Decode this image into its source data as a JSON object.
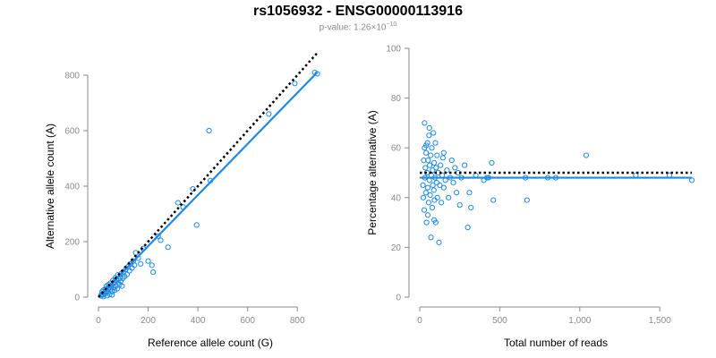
{
  "title": "rs1056932 - ENSG00000113916",
  "subtitle": {
    "prefix": "p-value: 1.26×10",
    "exponent": "−10"
  },
  "colors": {
    "points": "#1e88e5",
    "fit": "#1e88e5",
    "reference": "#000000",
    "ticks": "#8a8a8a"
  },
  "chart_data": [
    {
      "type": "scatter",
      "xlabel": "Reference allele count (G)",
      "ylabel": "Alternative allele count (A)",
      "xlim": [
        0,
        900
      ],
      "ylim": [
        0,
        800
      ],
      "xticks": [
        0,
        200,
        400,
        600,
        800
      ],
      "yticks": [
        0,
        200,
        400,
        600,
        800
      ],
      "xtick_labels": [
        "0",
        "200",
        "400",
        "600",
        "800"
      ],
      "ytick_labels": [
        "0",
        "200",
        "400",
        "600",
        "800"
      ],
      "grid": false,
      "reference_line": {
        "style": "dotted",
        "points": [
          [
            0,
            0
          ],
          [
            880,
            880
          ]
        ]
      },
      "fit_line": {
        "style": "solid",
        "points": [
          [
            0,
            0
          ],
          [
            880,
            810
          ]
        ]
      },
      "points": [
        [
          10,
          5
        ],
        [
          12,
          10
        ],
        [
          15,
          20
        ],
        [
          18,
          8
        ],
        [
          20,
          25
        ],
        [
          22,
          15
        ],
        [
          25,
          12
        ],
        [
          28,
          30
        ],
        [
          30,
          22
        ],
        [
          32,
          40
        ],
        [
          35,
          18
        ],
        [
          38,
          28
        ],
        [
          40,
          45
        ],
        [
          42,
          35
        ],
        [
          45,
          10
        ],
        [
          48,
          50
        ],
        [
          50,
          30
        ],
        [
          52,
          42
        ],
        [
          55,
          20
        ],
        [
          58,
          60
        ],
        [
          60,
          48
        ],
        [
          62,
          35
        ],
        [
          65,
          55
        ],
        [
          68,
          70
        ],
        [
          70,
          40
        ],
        [
          72,
          62
        ],
        [
          75,
          30
        ],
        [
          78,
          80
        ],
        [
          80,
          52
        ],
        [
          82,
          65
        ],
        [
          85,
          45
        ],
        [
          88,
          72
        ],
        [
          90,
          58
        ],
        [
          92,
          85
        ],
        [
          95,
          40
        ],
        [
          98,
          68
        ],
        [
          100,
          90
        ],
        [
          105,
          75
        ],
        [
          110,
          100
        ],
        [
          115,
          82
        ],
        [
          120,
          110
        ],
        [
          125,
          95
        ],
        [
          130,
          120
        ],
        [
          135,
          105
        ],
        [
          140,
          130
        ],
        [
          145,
          115
        ],
        [
          150,
          160
        ],
        [
          160,
          140
        ],
        [
          170,
          120
        ],
        [
          180,
          175
        ],
        [
          200,
          130
        ],
        [
          215,
          115
        ],
        [
          220,
          90
        ],
        [
          240,
          220
        ],
        [
          250,
          205
        ],
        [
          280,
          180
        ],
        [
          320,
          340
        ],
        [
          340,
          325
        ],
        [
          380,
          390
        ],
        [
          395,
          260
        ],
        [
          445,
          600
        ],
        [
          450,
          420
        ],
        [
          685,
          660
        ],
        [
          790,
          770
        ],
        [
          870,
          810
        ],
        [
          880,
          805
        ],
        [
          20,
          2
        ],
        [
          35,
          5
        ],
        [
          55,
          8
        ],
        [
          65,
          25
        ]
      ]
    },
    {
      "type": "scatter",
      "xlabel": "Total number of reads",
      "ylabel": "Percentage alternative (A)",
      "xlim": [
        0,
        1700
      ],
      "ylim": [
        0,
        100
      ],
      "xticks": [
        0,
        500,
        1000,
        1500
      ],
      "yticks": [
        0,
        20,
        40,
        60,
        80,
        100
      ],
      "xtick_labels": [
        "0",
        "500",
        "1,000",
        "1,500"
      ],
      "ytick_labels": [
        "0",
        "20",
        "40",
        "60",
        "80",
        "100"
      ],
      "grid": false,
      "reference_line": {
        "style": "dotted",
        "points": [
          [
            0,
            50
          ],
          [
            1700,
            50
          ]
        ]
      },
      "fit_line": {
        "style": "solid",
        "points": [
          [
            0,
            48
          ],
          [
            1700,
            48
          ]
        ]
      },
      "points": [
        [
          20,
          45
        ],
        [
          22,
          40
        ],
        [
          25,
          55
        ],
        [
          28,
          35
        ],
        [
          30,
          60
        ],
        [
          32,
          48
        ],
        [
          35,
          52
        ],
        [
          38,
          42
        ],
        [
          40,
          58
        ],
        [
          42,
          30
        ],
        [
          45,
          50
        ],
        [
          48,
          62
        ],
        [
          50,
          44
        ],
        [
          52,
          55
        ],
        [
          55,
          38
        ],
        [
          58,
          65
        ],
        [
          60,
          47
        ],
        [
          62,
          53
        ],
        [
          65,
          41
        ],
        [
          68,
          57
        ],
        [
          70,
          24
        ],
        [
          72,
          49
        ],
        [
          75,
          60
        ],
        [
          78,
          36
        ],
        [
          80,
          51
        ],
        [
          82,
          45
        ],
        [
          85,
          66
        ],
        [
          88,
          43
        ],
        [
          90,
          54
        ],
        [
          92,
          39
        ],
        [
          95,
          48
        ],
        [
          98,
          62
        ],
        [
          100,
          30
        ],
        [
          102,
          52
        ],
        [
          105,
          46
        ],
        [
          108,
          57
        ],
        [
          110,
          40
        ],
        [
          115,
          50
        ],
        [
          120,
          22
        ],
        [
          125,
          45
        ],
        [
          130,
          53
        ],
        [
          135,
          38
        ],
        [
          140,
          49
        ],
        [
          145,
          56
        ],
        [
          150,
          44
        ],
        [
          160,
          47
        ],
        [
          170,
          51
        ],
        [
          180,
          40
        ],
        [
          190,
          48
        ],
        [
          200,
          55
        ],
        [
          210,
          46
        ],
        [
          220,
          52
        ],
        [
          230,
          42
        ],
        [
          240,
          50
        ],
        [
          250,
          37
        ],
        [
          260,
          48
        ],
        [
          280,
          53
        ],
        [
          300,
          28
        ],
        [
          310,
          42
        ],
        [
          320,
          36
        ],
        [
          350,
          49
        ],
        [
          400,
          47
        ],
        [
          420,
          48
        ],
        [
          430,
          48
        ],
        [
          450,
          54
        ],
        [
          460,
          39
        ],
        [
          660,
          48
        ],
        [
          670,
          39
        ],
        [
          800,
          48
        ],
        [
          850,
          48
        ],
        [
          1040,
          57
        ],
        [
          1350,
          49
        ],
        [
          1560,
          49
        ],
        [
          1700,
          47
        ],
        [
          30,
          70
        ],
        [
          40,
          61
        ],
        [
          60,
          68
        ],
        [
          50,
          33
        ],
        [
          90,
          31
        ],
        [
          150,
          58
        ]
      ]
    }
  ]
}
